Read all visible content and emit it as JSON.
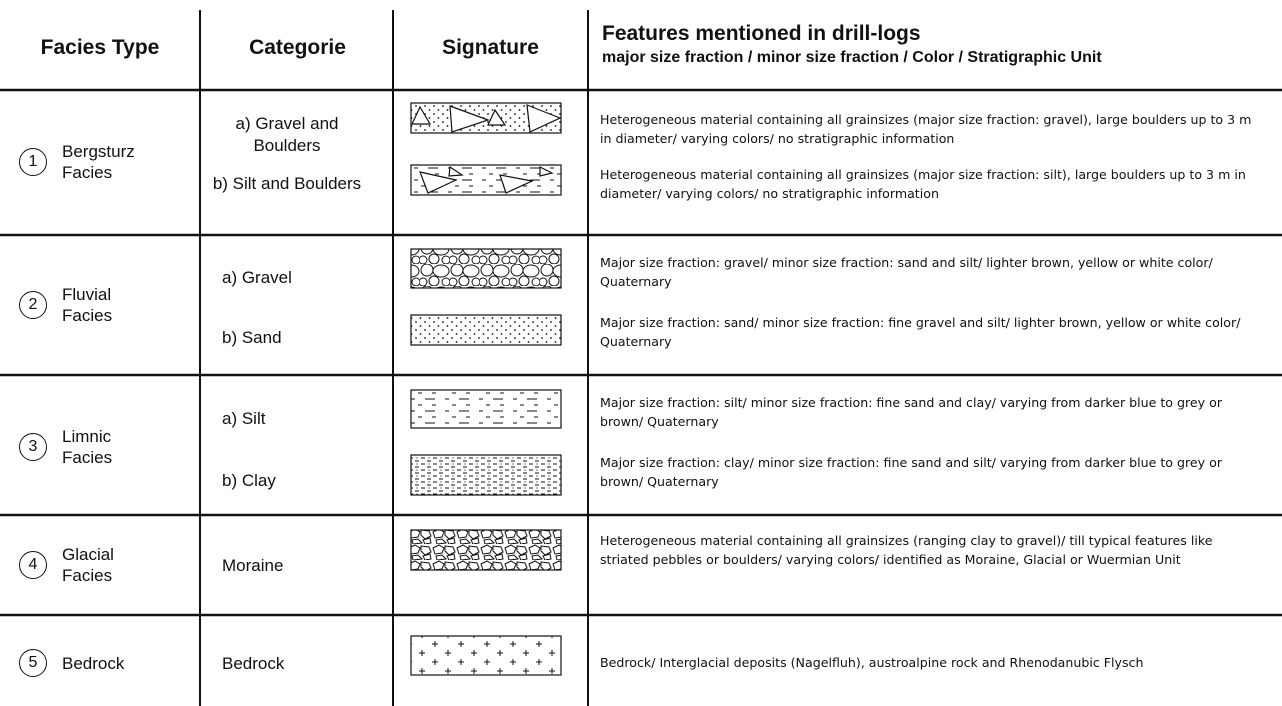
{
  "header": {
    "facies_type": "Facies Type",
    "categorie": "Categorie",
    "signature": "Signature",
    "features": "Features mentioned in drill-logs",
    "features_sub": "major size fraction / minor size fraction / Color / Stratigraphic Unit"
  },
  "rows": [
    {
      "number": "1",
      "name": "Bergsturz Facies",
      "items": [
        {
          "category": "a) Gravel and Boulders",
          "features": "Heterogeneous material containing all grainsizes (major size fraction: gravel), large boulders up to 3 m in diameter/ varying colors/ no stratigraphic information"
        },
        {
          "category": "b) Silt and Boulders",
          "features": "Heterogeneous material containing all grainsizes (major size fraction: silt), large boulders up to 3 m in diameter/ varying colors/ no stratigraphic information"
        }
      ]
    },
    {
      "number": "2",
      "name": "Fluvial Facies",
      "items": [
        {
          "category": "a) Gravel",
          "features": "Major size fraction: gravel/ minor size fraction: sand and silt/ lighter brown, yellow or white color/ Quaternary"
        },
        {
          "category": "b) Sand",
          "features": "Major size fraction: sand/ minor size fraction: fine gravel and silt/ lighter brown, yellow or white color/ Quaternary"
        }
      ]
    },
    {
      "number": "3",
      "name": "Limnic Facies",
      "items": [
        {
          "category": "a) Silt",
          "features": "Major size fraction: silt/ minor size fraction:  fine sand and clay/ varying from darker blue to grey or brown/ Quaternary"
        },
        {
          "category": "b) Clay",
          "features": "Major size fraction: clay/ minor size fraction:  fine sand and silt/ varying from darker blue to grey or brown/ Quaternary"
        }
      ]
    },
    {
      "number": "4",
      "name": "Glacial Facies",
      "items": [
        {
          "category": "Moraine",
          "features": "Heterogeneous material containing all grainsizes (ranging clay to gravel)/ till typical features like striated pebbles or boulders/ varying colors/ identified as Moraine, Glacial or Wuermian Unit"
        }
      ]
    },
    {
      "number": "5",
      "name": "Bedrock",
      "items": [
        {
          "category": "Bedrock",
          "features": "Bedrock/ Interglacial deposits (Nagelfluh), austroalpine rock and Rhenodanubic Flysch"
        }
      ]
    }
  ]
}
